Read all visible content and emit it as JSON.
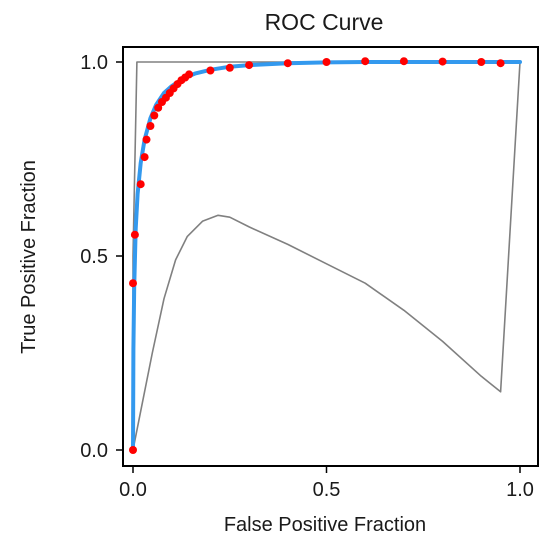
{
  "chart_data": {
    "type": "line",
    "title": "ROC Curve",
    "xlabel": "False Positive Fraction",
    "ylabel": "True Positive Fraction",
    "xlim": [
      0,
      1
    ],
    "ylim": [
      0,
      1
    ],
    "x_ticks": [
      0.0,
      0.5,
      1.0
    ],
    "y_ticks": [
      0.0,
      0.5,
      1.0
    ],
    "x_tick_labels": [
      "0.0",
      "0.5",
      "1.0"
    ],
    "y_tick_labels": [
      "0.0",
      "0.5",
      "1.0"
    ],
    "grid": false,
    "legend": "none",
    "colors": {
      "fitted_curve": "#3399ee",
      "empirical_points": "#ff0000",
      "gray_lines": "#808080",
      "frame": "#000000"
    },
    "series": [
      {
        "style": "points",
        "x": [
          0.0,
          0.0,
          0.005,
          0.02,
          0.03,
          0.035,
          0.045,
          0.055,
          0.065,
          0.075,
          0.085,
          0.095,
          0.105,
          0.115,
          0.125,
          0.135,
          0.145,
          0.2,
          0.25,
          0.3,
          0.4,
          0.5,
          0.6,
          0.7,
          0.8,
          0.9,
          0.95
        ],
        "y": [
          0.0,
          0.43,
          0.555,
          0.685,
          0.755,
          0.8,
          0.835,
          0.862,
          0.882,
          0.897,
          0.908,
          0.92,
          0.932,
          0.943,
          0.953,
          0.96,
          0.968,
          0.978,
          0.985,
          0.992,
          0.997,
          1.0,
          1.002,
          1.002,
          1.001,
          1.0,
          0.997
        ]
      },
      {
        "style": "smooth-curve",
        "x": [
          0.0,
          0.001,
          0.003,
          0.007,
          0.012,
          0.02,
          0.03,
          0.045,
          0.06,
          0.08,
          0.1,
          0.13,
          0.16,
          0.2,
          0.25,
          0.3,
          0.4,
          0.5,
          0.6,
          0.7,
          0.8,
          0.9,
          1.0
        ],
        "y": [
          0.0,
          0.26,
          0.42,
          0.57,
          0.66,
          0.74,
          0.8,
          0.855,
          0.89,
          0.92,
          0.938,
          0.958,
          0.97,
          0.98,
          0.988,
          0.992,
          0.997,
          0.999,
          1.0,
          1.0,
          1.0,
          1.0,
          1.0
        ]
      },
      {
        "style": "envelope",
        "x": [
          0.0,
          0.0,
          0.01,
          1.0,
          0.95,
          0.9,
          0.8,
          0.7,
          0.6,
          0.5,
          0.4,
          0.3,
          0.25,
          0.22,
          0.18,
          0.14,
          0.11,
          0.08,
          0.05,
          0.02,
          0.0
        ],
        "y": [
          0.0,
          0.5,
          1.0,
          1.0,
          0.15,
          0.19,
          0.28,
          0.36,
          0.43,
          0.48,
          0.53,
          0.575,
          0.6,
          0.605,
          0.59,
          0.55,
          0.49,
          0.39,
          0.25,
          0.1,
          0.0
        ]
      }
    ]
  }
}
